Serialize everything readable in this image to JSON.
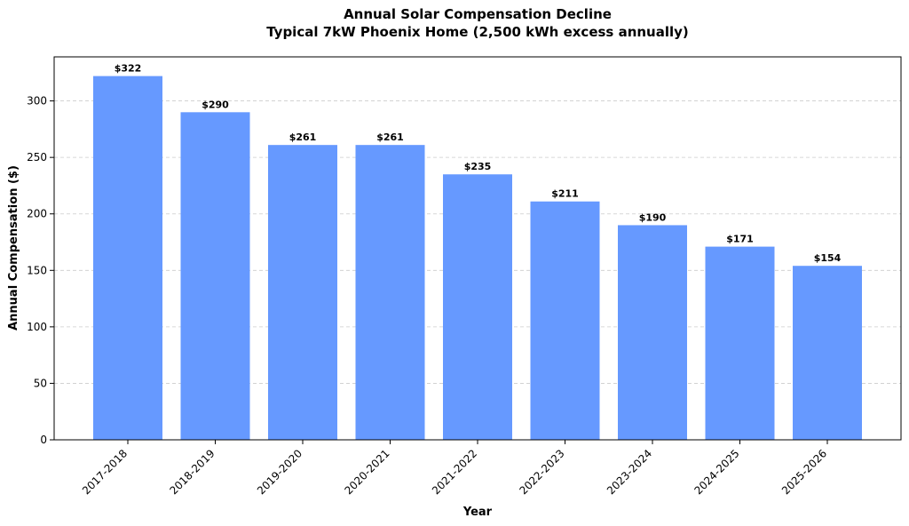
{
  "chart_data": {
    "type": "bar",
    "title": "Annual Solar Compensation Decline",
    "subtitle": "Typical 7kW Phoenix Home (2,500 kWh excess annually)",
    "xlabel": "Year",
    "ylabel": "Annual Compensation ($)",
    "categories": [
      "2017-2018",
      "2018-2019",
      "2019-2020",
      "2020-2021",
      "2021-2022",
      "2022-2023",
      "2023-2024",
      "2024-2025",
      "2025-2026"
    ],
    "values": [
      322,
      290,
      261,
      261,
      235,
      211,
      190,
      171,
      154
    ],
    "data_labels": [
      "$322",
      "$290",
      "$261",
      "$261",
      "$235",
      "$211",
      "$190",
      "$171",
      "$154"
    ],
    "ylim": [
      0,
      339
    ],
    "yticks": [
      0,
      50,
      100,
      150,
      200,
      250,
      300
    ],
    "grid": "y-dashed",
    "bar_color": "#6699ff"
  }
}
